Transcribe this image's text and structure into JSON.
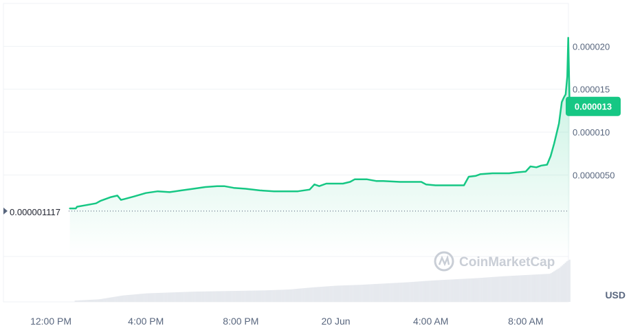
{
  "currency": "USD",
  "watermark": "CoinMarketCap",
  "colors": {
    "line": "#16c784",
    "grid": "#eff2f5",
    "volume": "#e6e9ee",
    "badge": "#16c784",
    "axis_text": "#58667e"
  },
  "reference_line": {
    "value": 1.117e-06,
    "label": "0.000001117"
  },
  "current_price": {
    "value": 1.3e-05,
    "label": "0.000013"
  },
  "chart_data": {
    "type": "area",
    "title": "",
    "xlabel": "",
    "ylabel": "",
    "x_unit": "hours after 10:00 AM, 19 Jun",
    "x_ticks": [
      {
        "t": 2,
        "label": "12:00 PM"
      },
      {
        "t": 6,
        "label": "4:00 PM"
      },
      {
        "t": 10,
        "label": "8:00 PM"
      },
      {
        "t": 14,
        "label": "20 Jun"
      },
      {
        "t": 18,
        "label": "4:00 AM"
      },
      {
        "t": 22,
        "label": "8:00 AM"
      }
    ],
    "y_ticks": [
      {
        "v": 5e-06,
        "label": "0.0000050"
      },
      {
        "v": 1e-05,
        "label": "0.000010"
      },
      {
        "v": 1.5e-05,
        "label": "0.000015"
      },
      {
        "v": 2e-05,
        "label": "0.000020"
      }
    ],
    "xlim": [
      0,
      23.8
    ],
    "ylim": [
      -4.5e-06,
      2.5e-05
    ],
    "grid": true,
    "series": [
      {
        "values": [
          [
            2.8,
            1.1e-06
          ],
          [
            3.05,
            1.1e-06
          ],
          [
            3.1,
            1.3e-06
          ],
          [
            3.5,
            1.5e-06
          ],
          [
            3.9,
            1.7e-06
          ],
          [
            4.1,
            2e-06
          ],
          [
            4.5,
            2.4e-06
          ],
          [
            4.8,
            2.6e-06
          ],
          [
            4.95,
            2.1e-06
          ],
          [
            5.1,
            2.2e-06
          ],
          [
            5.5,
            2.5e-06
          ],
          [
            6.0,
            2.9e-06
          ],
          [
            6.5,
            3.1e-06
          ],
          [
            7.0,
            3e-06
          ],
          [
            7.5,
            3.2e-06
          ],
          [
            8.0,
            3.4e-06
          ],
          [
            8.5,
            3.6e-06
          ],
          [
            9.0,
            3.7e-06
          ],
          [
            9.3,
            3.7e-06
          ],
          [
            9.7,
            3.5e-06
          ],
          [
            10.2,
            3.4e-06
          ],
          [
            10.8,
            3.2e-06
          ],
          [
            11.4,
            3.1e-06
          ],
          [
            11.9,
            3.1e-06
          ],
          [
            12.4,
            3.1e-06
          ],
          [
            12.9,
            3.3e-06
          ],
          [
            13.1,
            3.9e-06
          ],
          [
            13.3,
            3.7e-06
          ],
          [
            13.6,
            4e-06
          ],
          [
            14.3,
            4e-06
          ],
          [
            14.6,
            4.2e-06
          ],
          [
            14.8,
            4.5e-06
          ],
          [
            15.3,
            4.5e-06
          ],
          [
            15.7,
            4.3e-06
          ],
          [
            16.0,
            4.3e-06
          ],
          [
            16.7,
            4.2e-06
          ],
          [
            17.6,
            4.2e-06
          ],
          [
            17.8,
            3.9e-06
          ],
          [
            18.2,
            3.8e-06
          ],
          [
            19.0,
            3.8e-06
          ],
          [
            19.4,
            3.8e-06
          ],
          [
            19.6,
            4.8e-06
          ],
          [
            19.9,
            4.9e-06
          ],
          [
            20.1,
            5.1e-06
          ],
          [
            20.6,
            5.2e-06
          ],
          [
            21.3,
            5.2e-06
          ],
          [
            21.6,
            5.3e-06
          ],
          [
            22.0,
            5.4e-06
          ],
          [
            22.2,
            6e-06
          ],
          [
            22.45,
            5.9e-06
          ],
          [
            22.65,
            6.1e-06
          ],
          [
            22.9,
            6.2e-06
          ],
          [
            23.05,
            7.2e-06
          ],
          [
            23.2,
            8.7e-06
          ],
          [
            23.4,
            1.1e-05
          ],
          [
            23.52,
            1.35e-05
          ],
          [
            23.6,
            1.4e-05
          ],
          [
            23.68,
            1.44e-05
          ],
          [
            23.75,
            1.65e-05
          ],
          [
            23.79,
            2.1e-05
          ],
          [
            23.82,
            1.72e-05
          ],
          [
            23.85,
            1.3e-05
          ]
        ]
      }
    ],
    "volume": [
      [
        3.0,
        0.03
      ],
      [
        4.0,
        0.06
      ],
      [
        5.0,
        0.15
      ],
      [
        6.0,
        0.2
      ],
      [
        7.0,
        0.22
      ],
      [
        8.0,
        0.24
      ],
      [
        9.0,
        0.25
      ],
      [
        10.0,
        0.26
      ],
      [
        11.0,
        0.27
      ],
      [
        12.0,
        0.29
      ],
      [
        13.0,
        0.34
      ],
      [
        14.0,
        0.38
      ],
      [
        15.0,
        0.4
      ],
      [
        16.0,
        0.43
      ],
      [
        17.0,
        0.46
      ],
      [
        18.0,
        0.5
      ],
      [
        19.0,
        0.53
      ],
      [
        20.0,
        0.56
      ],
      [
        21.0,
        0.6
      ],
      [
        22.0,
        0.63
      ],
      [
        23.0,
        0.66
      ],
      [
        23.4,
        0.8
      ],
      [
        23.7,
        0.95
      ],
      [
        23.85,
        1.0
      ]
    ]
  }
}
